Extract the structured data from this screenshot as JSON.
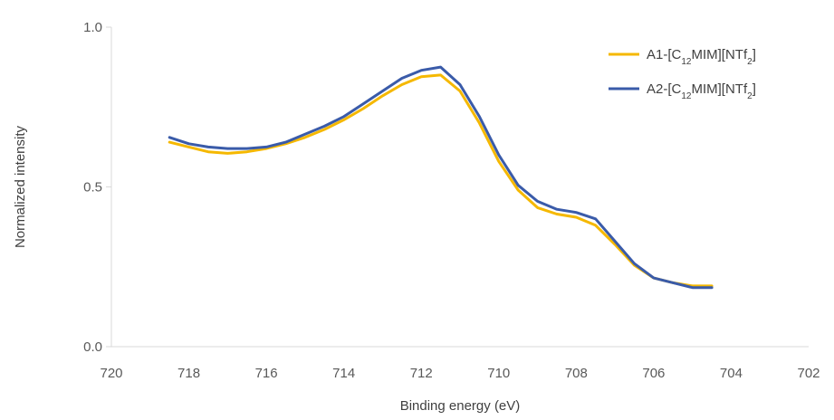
{
  "chart_data": {
    "type": "line",
    "title": "",
    "xlabel": "Binding energy (eV)",
    "ylabel": "Normalized intensity",
    "xlim": [
      720,
      702
    ],
    "x_reversed": true,
    "ylim": [
      0,
      1
    ],
    "xticks": [
      720,
      718,
      716,
      714,
      712,
      710,
      708,
      706,
      704,
      702
    ],
    "yticks": [
      0.0,
      0.5,
      1.0
    ],
    "xtick_labels": [
      "720",
      "718",
      "716",
      "714",
      "712",
      "710",
      "708",
      "706",
      "704",
      "702"
    ],
    "ytick_labels": [
      "0.0",
      "0.5",
      "1.0"
    ],
    "grid": false,
    "legend_position": "top-right",
    "series": [
      {
        "name": "A1-[C12MIM][NTf2]",
        "legend_parts": [
          {
            "text": "A1-[C",
            "sub": false
          },
          {
            "text": "12",
            "sub": true
          },
          {
            "text": "MIM][NTf",
            "sub": false
          },
          {
            "text": "2",
            "sub": true
          },
          {
            "text": "]",
            "sub": false
          }
        ],
        "color": "#F5B800",
        "x": [
          718.5,
          718,
          717.5,
          717,
          716.5,
          716,
          715.5,
          715,
          714.5,
          714,
          713.5,
          713,
          712.5,
          712,
          711.5,
          711,
          710.5,
          710,
          709.5,
          709,
          708.5,
          708,
          707.5,
          707,
          706.5,
          706,
          705.5,
          705,
          704.5
        ],
        "y": [
          0.64,
          0.625,
          0.61,
          0.605,
          0.61,
          0.62,
          0.635,
          0.655,
          0.68,
          0.71,
          0.745,
          0.785,
          0.82,
          0.845,
          0.85,
          0.8,
          0.7,
          0.58,
          0.49,
          0.435,
          0.415,
          0.405,
          0.38,
          0.32,
          0.255,
          0.215,
          0.2,
          0.19,
          0.19
        ]
      },
      {
        "name": "A2-[C12MIM][NTf2]",
        "legend_parts": [
          {
            "text": "A2-[C",
            "sub": false
          },
          {
            "text": "12",
            "sub": true
          },
          {
            "text": "MIM][NTf",
            "sub": false
          },
          {
            "text": "2",
            "sub": true
          },
          {
            "text": "]",
            "sub": false
          }
        ],
        "color": "#3A5BA9",
        "x": [
          718.5,
          718,
          717.5,
          717,
          716.5,
          716,
          715.5,
          715,
          714.5,
          714,
          713.5,
          713,
          712.5,
          712,
          711.5,
          711,
          710.5,
          710,
          709.5,
          709,
          708.5,
          708,
          707.5,
          707,
          706.5,
          706,
          705.5,
          705,
          704.5
        ],
        "y": [
          0.655,
          0.635,
          0.625,
          0.62,
          0.62,
          0.625,
          0.64,
          0.665,
          0.69,
          0.72,
          0.76,
          0.8,
          0.84,
          0.865,
          0.875,
          0.82,
          0.72,
          0.6,
          0.505,
          0.455,
          0.43,
          0.42,
          0.4,
          0.33,
          0.26,
          0.215,
          0.2,
          0.185,
          0.185
        ]
      }
    ]
  }
}
